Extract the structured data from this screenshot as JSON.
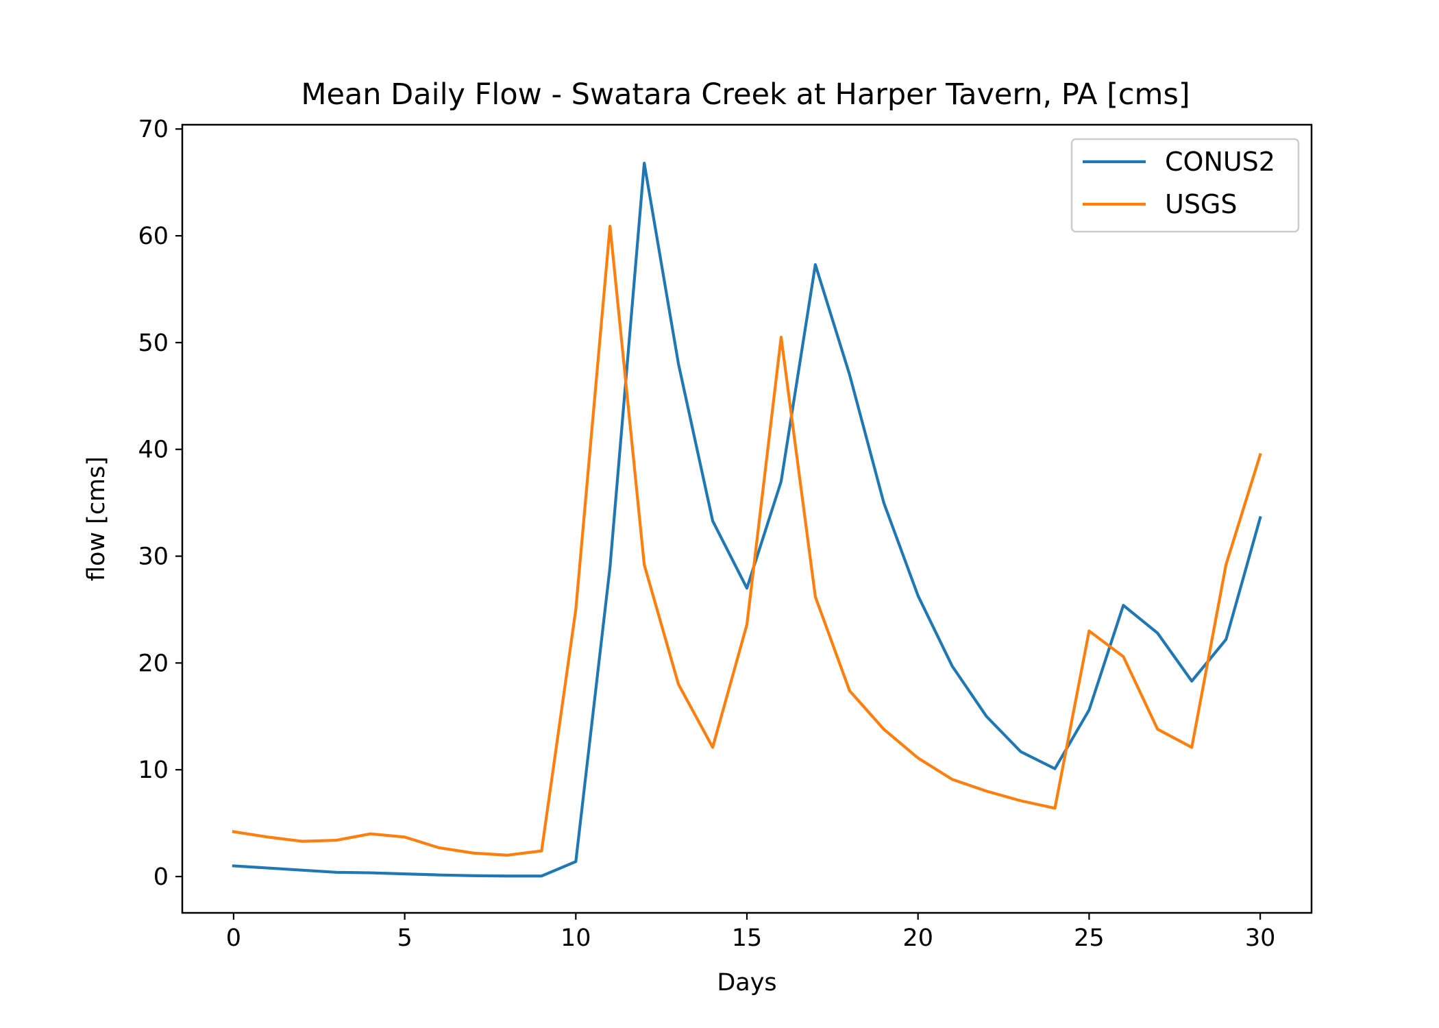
{
  "chart_data": {
    "type": "line",
    "title": "Mean Daily Flow - Swatara Creek at Harper Tavern, PA [cms]",
    "xlabel": "Days",
    "ylabel": "flow [cms]",
    "xlim": [
      -1.5,
      31.5
    ],
    "ylim": [
      -3.4,
      70.4
    ],
    "xticks": [
      0,
      5,
      10,
      15,
      20,
      25,
      30
    ],
    "yticks": [
      0,
      10,
      20,
      30,
      40,
      50,
      60,
      70
    ],
    "grid": false,
    "legend_position": "top-right",
    "x": [
      0,
      1,
      2,
      3,
      4,
      5,
      6,
      7,
      8,
      9,
      10,
      11,
      12,
      13,
      14,
      15,
      16,
      17,
      18,
      19,
      20,
      21,
      22,
      23,
      24,
      25,
      26,
      27,
      28,
      29,
      30
    ],
    "series": [
      {
        "name": "CONUS2",
        "color": "#1f77b4",
        "values": [
          1.0,
          0.8,
          0.6,
          0.4,
          0.35,
          0.25,
          0.15,
          0.08,
          0.05,
          0.05,
          1.4,
          29.0,
          66.8,
          48.0,
          33.3,
          27.0,
          37.0,
          57.3,
          47.0,
          35.0,
          26.3,
          19.7,
          15.0,
          11.7,
          10.1,
          15.6,
          25.4,
          22.8,
          18.3,
          22.2,
          33.6
        ]
      },
      {
        "name": "USGS",
        "color": "#ff7f0e",
        "values": [
          4.2,
          3.7,
          3.3,
          3.4,
          4.0,
          3.7,
          2.7,
          2.2,
          2.0,
          2.4,
          25.0,
          60.9,
          29.2,
          18.0,
          12.1,
          23.6,
          50.5,
          26.2,
          17.4,
          13.8,
          11.1,
          9.1,
          8.0,
          7.1,
          6.4,
          23.0,
          20.6,
          13.8,
          12.1,
          29.2,
          39.5
        ]
      }
    ]
  }
}
